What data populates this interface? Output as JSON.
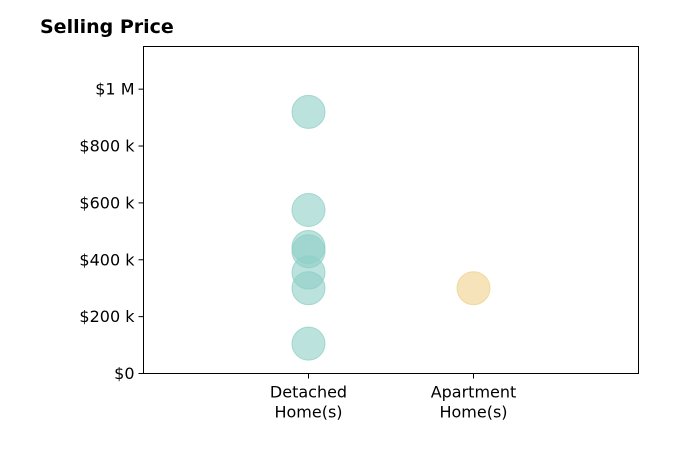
{
  "chart_data": {
    "type": "scatter",
    "title": "Selling Price",
    "xlabel": "",
    "ylabel": "",
    "categories": [
      "Detached\nHome(s)",
      "Apartment\nHome(s)"
    ],
    "y_ticks": [
      {
        "value": 0,
        "label": "$0"
      },
      {
        "value": 200000,
        "label": "$200 k"
      },
      {
        "value": 400000,
        "label": "$400 k"
      },
      {
        "value": 600000,
        "label": "$600 k"
      },
      {
        "value": 800000,
        "label": "$800 k"
      },
      {
        "value": 1000000,
        "label": "$1 M"
      }
    ],
    "ylim": [
      0,
      1150000
    ],
    "grid": false,
    "series": [
      {
        "category": "Detached\nHome(s)",
        "color": "#8ecfc6",
        "values": [
          920000,
          575000,
          445000,
          430000,
          355000,
          300000,
          105000
        ]
      },
      {
        "category": "Apartment\nHome(s)",
        "color": "#f0d08a",
        "values": [
          300000
        ]
      }
    ]
  }
}
